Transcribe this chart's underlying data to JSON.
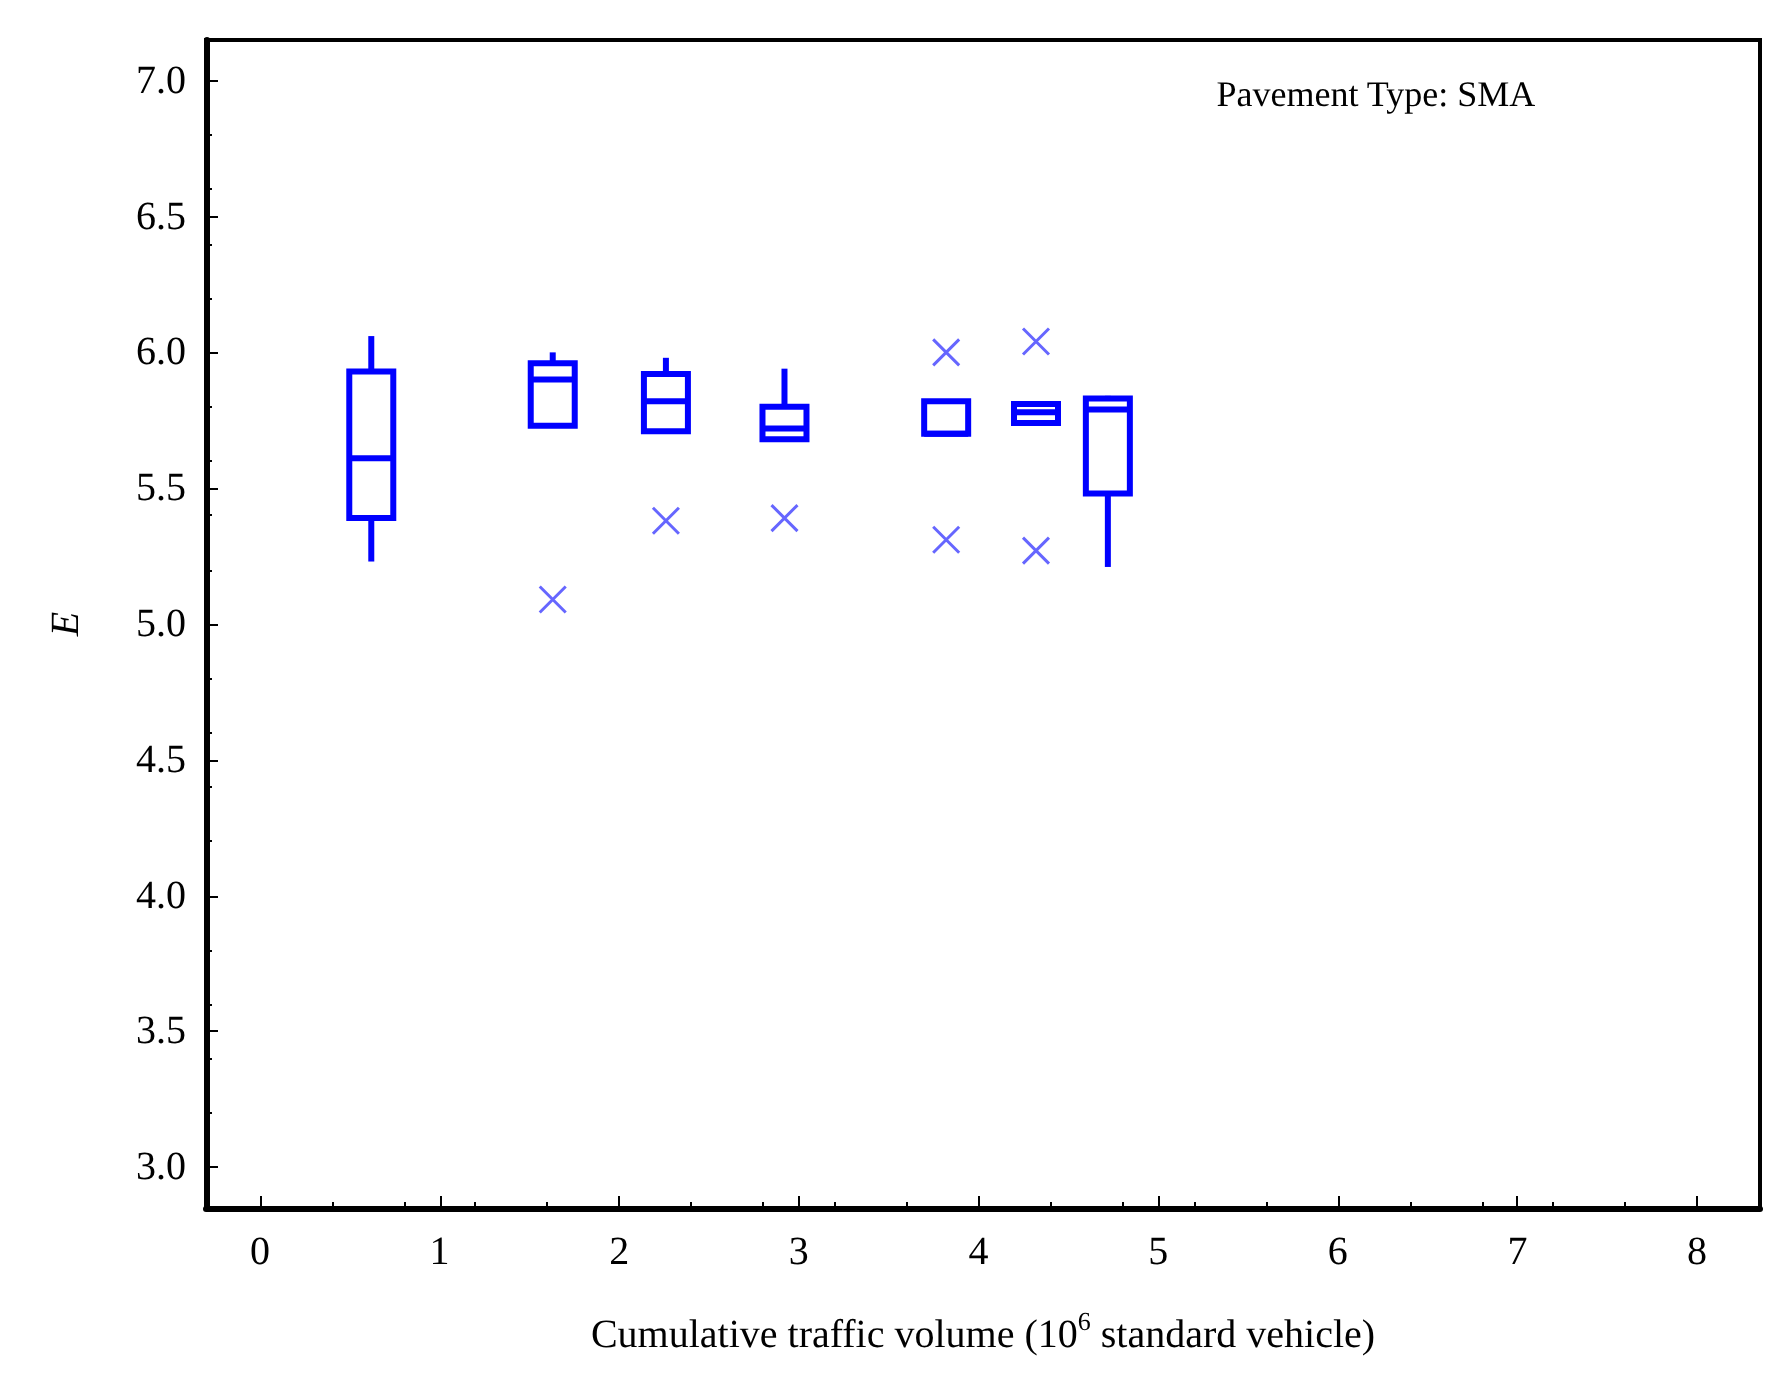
{
  "chart_data": {
    "type": "box",
    "annotations": [
      "Pavement Type: SMA"
    ],
    "xlabel": "Cumulative traffic volume (10$^{6}$ standard vehicle)",
    "ylabel": "E",
    "x": [
      0.62,
      1.63,
      2.26,
      2.92,
      3.82,
      4.32,
      4.72
    ],
    "color": "#0000ff",
    "boxes": [
      {
        "low": 5.23,
        "q1": 5.39,
        "median": 5.61,
        "q3": 5.93,
        "high": 6.06
      },
      {
        "low": 5.73,
        "q1": 5.73,
        "median": 5.9,
        "q3": 5.96,
        "high": 6.0,
        "outliers": [
          5.09
        ]
      },
      {
        "low": 5.71,
        "q1": 5.71,
        "median": 5.82,
        "q3": 5.92,
        "high": 5.98,
        "outliers": [
          5.38
        ]
      },
      {
        "low": 5.68,
        "q1": 5.68,
        "median": 5.72,
        "q3": 5.8,
        "high": 5.94,
        "outliers": [
          5.39
        ]
      },
      {
        "low": 5.7,
        "q1": 5.7,
        "median": 5.7,
        "q3": 5.82,
        "high": 5.82,
        "outliers": [
          6.0,
          5.31
        ]
      },
      {
        "low": 5.74,
        "q1": 5.74,
        "median": 5.78,
        "q3": 5.81,
        "high": 5.81,
        "outliers": [
          6.04,
          5.27
        ]
      },
      {
        "low": 5.21,
        "q1": 5.48,
        "median": 5.79,
        "q3": 5.83,
        "high": 5.84
      }
    ],
    "xlim": [
      -0.3,
      8.35
    ],
    "xticks": [
      0,
      1,
      2,
      3,
      4,
      5,
      6,
      7,
      8
    ],
    "ylim": [
      2.85,
      7.15
    ],
    "yticks": [
      {
        "value": 3,
        "label": "3.0"
      },
      {
        "value": 3.5,
        "label": "3.5"
      },
      {
        "value": 4,
        "label": "4.0"
      },
      {
        "value": 4.5,
        "label": "4.5"
      },
      {
        "value": 5,
        "label": "5.0"
      },
      {
        "value": 5.5,
        "label": "5.5"
      },
      {
        "value": 6,
        "label": "6.0"
      },
      {
        "value": 6.5,
        "label": "6.5"
      },
      {
        "value": 7,
        "label": "7.0"
      }
    ],
    "marker": "cross"
  }
}
